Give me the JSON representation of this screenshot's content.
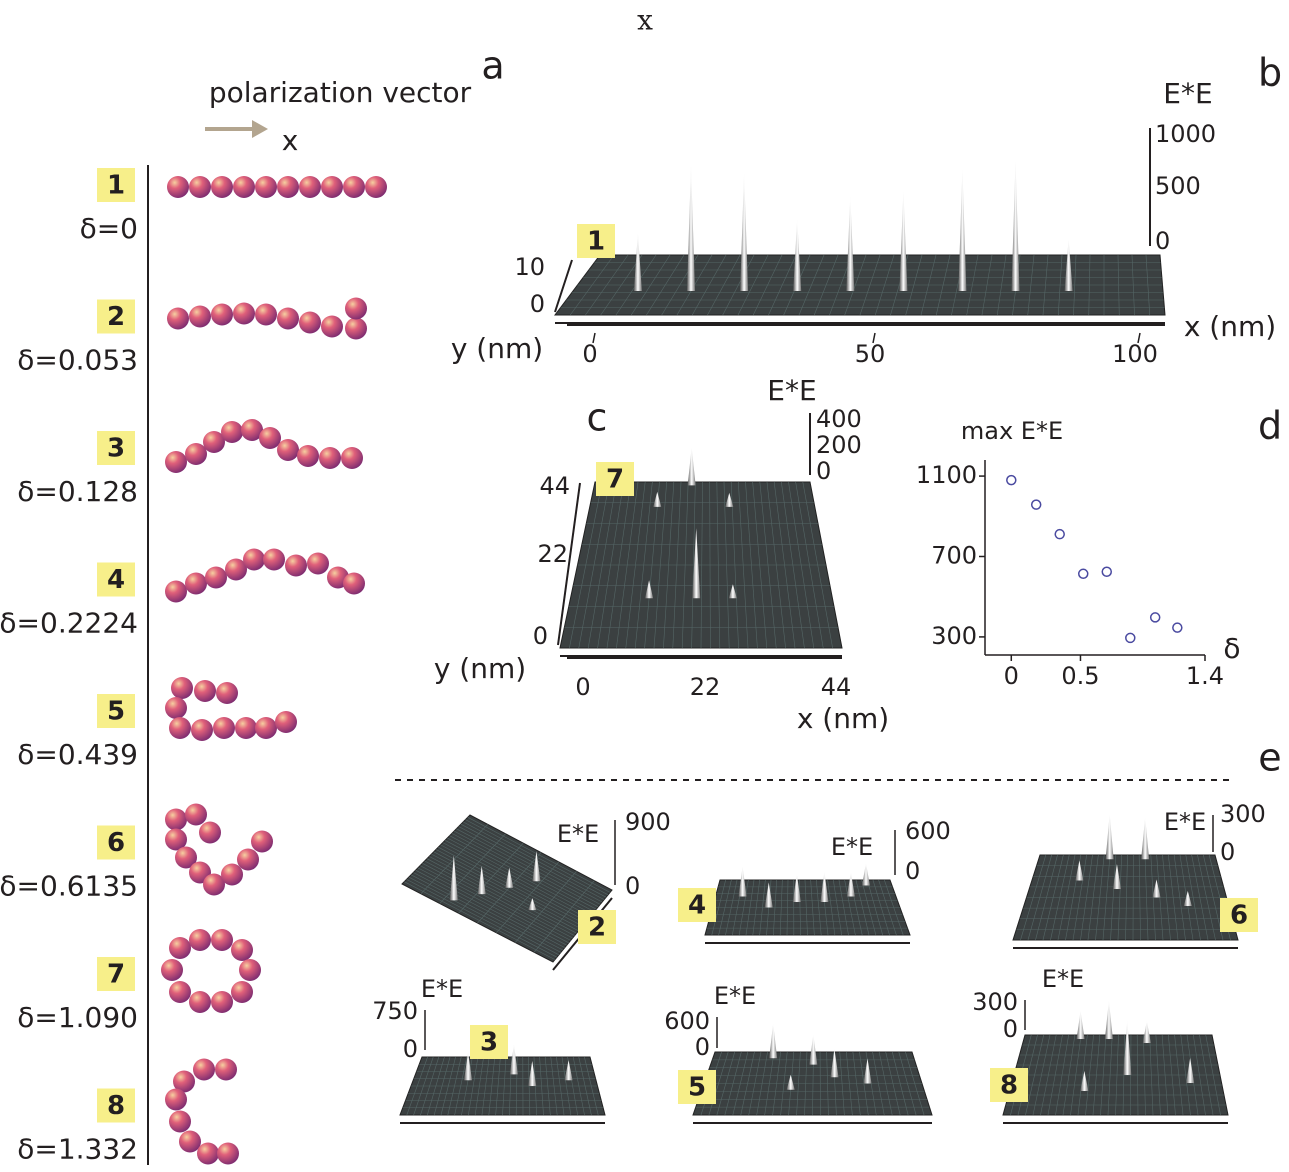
{
  "header": {
    "top_label": "x"
  },
  "panel_labels": [
    "a",
    "b",
    "c",
    "d",
    "e"
  ],
  "polarization": {
    "label": "polarization vector",
    "axis": "x"
  },
  "chains": [
    {
      "index": "1",
      "delta": "δ=0"
    },
    {
      "index": "2",
      "delta": "δ=0.053"
    },
    {
      "index": "3",
      "delta": "δ=0.128"
    },
    {
      "index": "4",
      "delta": "δ=0.2224"
    },
    {
      "index": "5",
      "delta": "δ=0.439"
    },
    {
      "index": "6",
      "delta": "δ=0.6135"
    },
    {
      "index": "7",
      "delta": "δ=1.090"
    },
    {
      "index": "8",
      "delta": "δ=1.332"
    }
  ],
  "panel_b": {
    "marker": "1",
    "z_label": "E*E",
    "z_ticks": [
      "1000",
      "500",
      "0"
    ],
    "y_label": "y (nm)",
    "y_ticks": [
      "10",
      "0"
    ],
    "x_label": "x (nm)",
    "x_ticks": [
      "0",
      "50",
      "100"
    ]
  },
  "panel_c": {
    "marker": "7",
    "z_label": "E*E",
    "z_ticks": [
      "400",
      "200",
      "0"
    ],
    "y_label": "y (nm)",
    "y_ticks": [
      "44",
      "22",
      "0"
    ],
    "x_label": "x (nm)",
    "x_ticks": [
      "0",
      "22",
      "44"
    ]
  },
  "chart_data": {
    "type": "scatter",
    "y_label": "max E*E",
    "x_label": "δ",
    "x": [
      0,
      0.18,
      0.35,
      0.52,
      0.69,
      0.86,
      1.04,
      1.2
    ],
    "values": [
      1080,
      958,
      811,
      614,
      624,
      295,
      397,
      346
    ],
    "xlim": [
      -0.19,
      1.4
    ],
    "ylim": [
      210,
      1180
    ],
    "xticks": [
      0,
      0.5,
      1.4
    ],
    "yticks": [
      300,
      700,
      1100
    ],
    "color": "#4a4aa0"
  },
  "panel_e": [
    {
      "marker": "2",
      "z_label": "E*E",
      "z_ticks": [
        "900",
        "0"
      ]
    },
    {
      "marker": "4",
      "z_label": "E*E",
      "z_ticks": [
        "600",
        "0"
      ]
    },
    {
      "marker": "6",
      "z_label": "E*E",
      "z_ticks": [
        "300",
        "0"
      ]
    },
    {
      "marker": "3",
      "z_label": "E*E",
      "z_ticks": [
        "750",
        "0"
      ]
    },
    {
      "marker": "5",
      "z_label": "E*E",
      "z_ticks": [
        "600",
        "0"
      ]
    },
    {
      "marker": "8",
      "z_label": "E*E",
      "z_ticks": [
        "300",
        "0"
      ]
    }
  ]
}
